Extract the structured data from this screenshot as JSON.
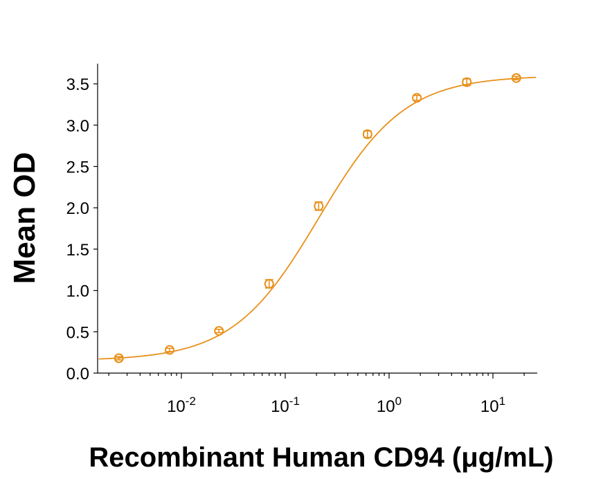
{
  "chart_data": {
    "type": "scatter",
    "title": "",
    "xlabel": "Recombinant Human CD94 (μg/mL)",
    "ylabel": "Mean OD",
    "x_scale": "log10",
    "xlim": [
      0.0016,
      26
    ],
    "ylim": [
      0,
      3.7
    ],
    "grid": false,
    "legend": "none",
    "color": "#E8901A",
    "y_ticks": [
      0.0,
      0.5,
      1.0,
      1.5,
      2.0,
      2.5,
      3.0,
      3.5
    ],
    "y_tick_labels": [
      "0.0",
      "0.5",
      "1.0",
      "1.5",
      "2.0",
      "2.5",
      "3.0",
      "3.5"
    ],
    "x_ticks": [
      {
        "value": 0.01,
        "base": "10",
        "exp": "-2"
      },
      {
        "value": 0.1,
        "base": "10",
        "exp": "-1"
      },
      {
        "value": 1,
        "base": "10",
        "exp": "0"
      },
      {
        "value": 10,
        "base": "10",
        "exp": "1"
      }
    ],
    "series": [
      {
        "points": [
          {
            "x": 0.0025,
            "y": 0.18,
            "err": 0.02
          },
          {
            "x": 0.0077,
            "y": 0.28,
            "err": 0.02
          },
          {
            "x": 0.023,
            "y": 0.51,
            "err": 0.02
          },
          {
            "x": 0.07,
            "y": 1.08,
            "err": 0.05
          },
          {
            "x": 0.21,
            "y": 2.02,
            "err": 0.05
          },
          {
            "x": 0.62,
            "y": 2.89,
            "err": 0.04
          },
          {
            "x": 1.85,
            "y": 3.33,
            "err": 0.03
          },
          {
            "x": 5.6,
            "y": 3.52,
            "err": 0.04
          },
          {
            "x": 16.8,
            "y": 3.57,
            "err": 0.02
          }
        ],
        "fit": {
          "model": "4PL",
          "bottom": 0.15,
          "top": 3.6,
          "ec50": 0.21,
          "hill": 1.05
        }
      }
    ]
  }
}
